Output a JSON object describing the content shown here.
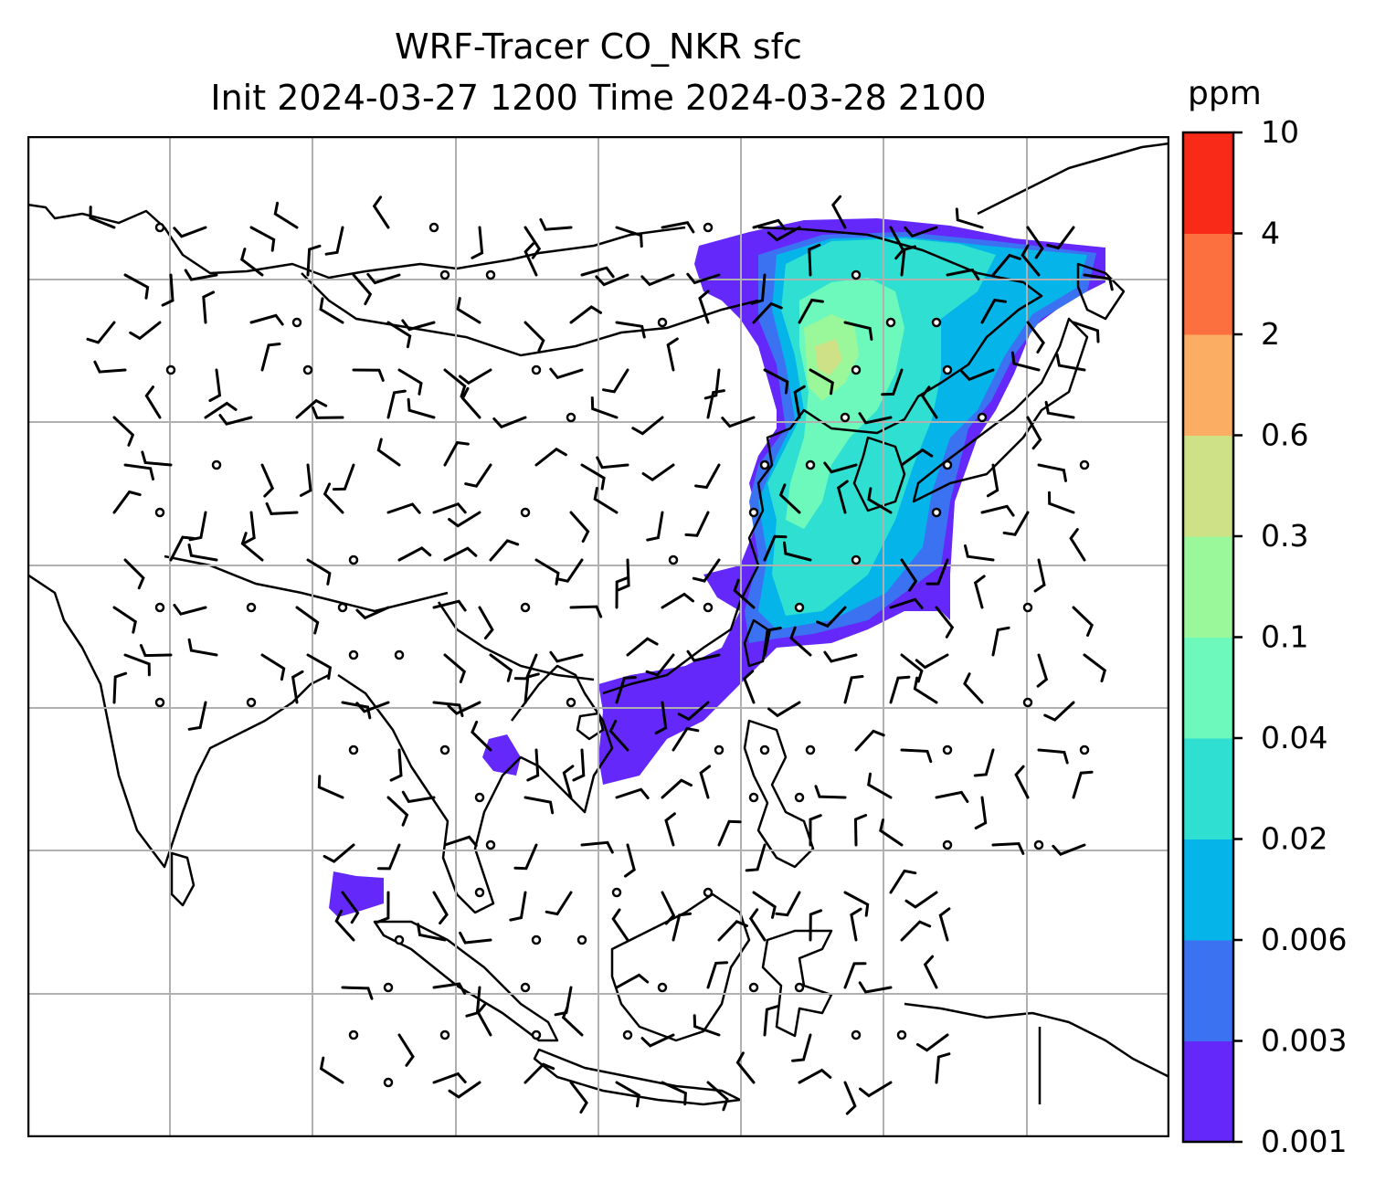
{
  "title": {
    "line1": "WRF-Tracer CO_NKR sfc",
    "line2": "Init 2024-03-27 1200 Time 2024-03-28 2100"
  },
  "colorbar": {
    "unit": "ppm",
    "levels": [
      "0.001",
      "0.003",
      "0.006",
      "0.02",
      "0.04",
      "0.1",
      "0.3",
      "0.6",
      "2",
      "4",
      "10"
    ],
    "colors": [
      "#6428fa",
      "#3a72f2",
      "#05b4e9",
      "#2fe0d2",
      "#6cf9bb",
      "#9bf89a",
      "#cfe187",
      "#fbad63",
      "#fc7040",
      "#fa2a18"
    ]
  }
}
